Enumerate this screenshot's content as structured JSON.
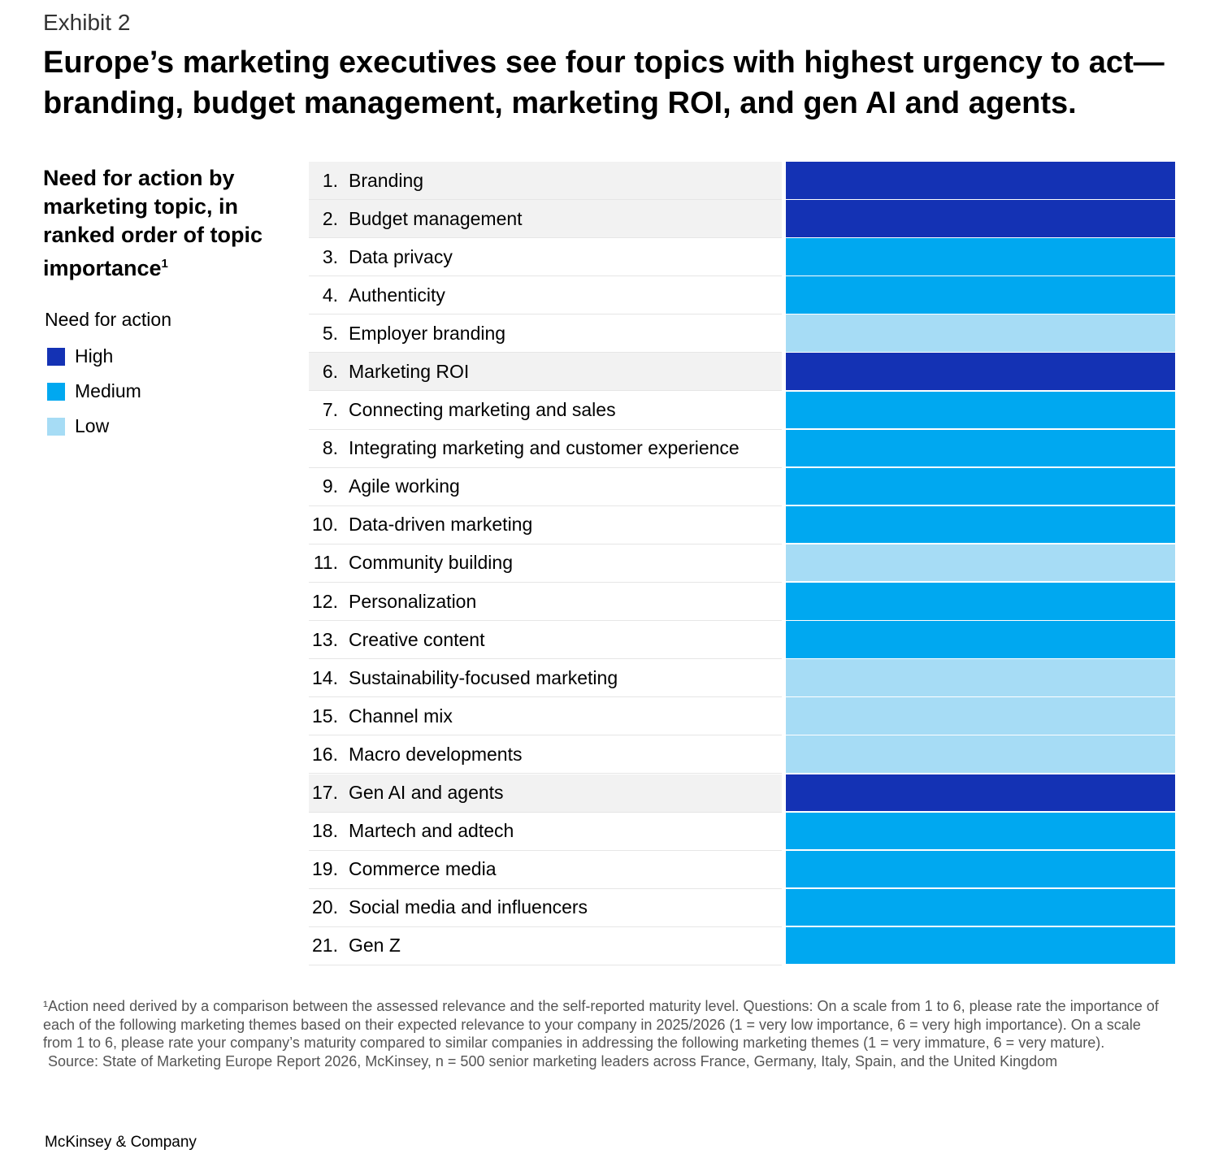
{
  "header": {
    "exhibit": "Exhibit 2",
    "title": "Europe’s marketing executives see four topics with highest urgency to act—branding, budget management, marketing ROI, and gen AI and agents."
  },
  "chart_data": {
    "type": "table",
    "subtitle": "Need for action by marketing topic, in ranked order of topic importance",
    "subtitle_footnote": "1",
    "legend_title": "Need for action",
    "legend": [
      {
        "level": "High",
        "label": "High",
        "color": "#1432B4"
      },
      {
        "level": "Medium",
        "label": "Medium",
        "color": "#00A8F0"
      },
      {
        "level": "Low",
        "label": "Low",
        "color": "#A6DCF5"
      }
    ],
    "highlight_row_color": "#F2F2F2",
    "rows": [
      {
        "rank": "1.",
        "topic": "Branding",
        "need": "High"
      },
      {
        "rank": "2.",
        "topic": "Budget management",
        "need": "High"
      },
      {
        "rank": "3.",
        "topic": "Data privacy",
        "need": "Medium"
      },
      {
        "rank": "4.",
        "topic": "Authenticity",
        "need": "Medium"
      },
      {
        "rank": "5.",
        "topic": "Employer branding",
        "need": "Low"
      },
      {
        "rank": "6.",
        "topic": "Marketing ROI",
        "need": "High"
      },
      {
        "rank": "7.",
        "topic": "Connecting marketing and sales",
        "need": "Medium"
      },
      {
        "rank": "8.",
        "topic": "Integrating marketing and customer experience",
        "need": "Medium"
      },
      {
        "rank": "9.",
        "topic": "Agile working",
        "need": "Medium"
      },
      {
        "rank": "10.",
        "topic": "Data-driven marketing",
        "need": "Medium"
      },
      {
        "rank": "11.",
        "topic": "Community building",
        "need": "Low"
      },
      {
        "rank": "12.",
        "topic": "Personalization",
        "need": "Medium"
      },
      {
        "rank": "13.",
        "topic": "Creative content",
        "need": "Medium"
      },
      {
        "rank": "14.",
        "topic": "Sustainability-focused marketing",
        "need": "Low"
      },
      {
        "rank": "15.",
        "topic": "Channel mix",
        "need": "Low"
      },
      {
        "rank": "16.",
        "topic": "Macro developments",
        "need": "Low"
      },
      {
        "rank": "17.",
        "topic": "Gen AI and agents",
        "need": "High"
      },
      {
        "rank": "18.",
        "topic": "Martech and adtech",
        "need": "Medium"
      },
      {
        "rank": "19.",
        "topic": "Commerce media",
        "need": "Medium"
      },
      {
        "rank": "20.",
        "topic": "Social media and influencers",
        "need": "Medium"
      },
      {
        "rank": "21.",
        "topic": "Gen Z",
        "need": "Medium"
      }
    ]
  },
  "footnote": {
    "note": "¹Action need derived by a comparison between the assessed relevance and the self-reported maturity level. Questions: On a scale from 1 to 6, please rate the importance of each of the following marketing themes based on their expected relevance to your company in 2025/2026 (1 = very low importance, 6 = very high importance). On a scale from 1 to 6, please rate your company’s maturity compared to similar companies in addressing the following marketing themes (1 = very immature, 6 = very mature).",
    "source": "Source: State of Marketing Europe Report 2026, McKinsey, n = 500 senior marketing leaders across France, Germany, Italy, Spain, and the United Kingdom"
  },
  "brand": "McKinsey & Company"
}
